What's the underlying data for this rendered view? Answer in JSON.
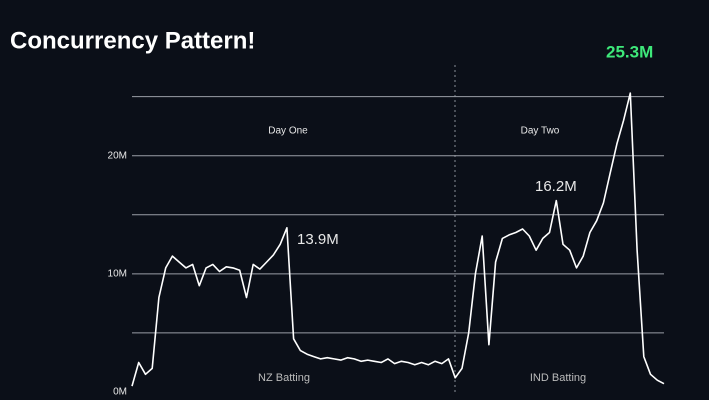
{
  "chart_data": {
    "type": "line",
    "title": "Concurrency Pattern!",
    "series": [
      {
        "color": "#ffffff",
        "values": [
          0.5,
          2.5,
          1.5,
          2,
          8,
          10.5,
          11.5,
          11,
          10.5,
          10.8,
          9,
          10.5,
          10.8,
          10.2,
          10.6,
          10.5,
          10.3,
          8,
          10.8,
          10.4,
          11,
          11.6,
          12.5,
          13.9,
          4.5,
          3.5,
          3.2,
          3,
          2.8,
          2.9,
          2.8,
          2.7,
          2.9,
          2.8,
          2.6,
          2.7,
          2.6,
          2.5,
          2.8,
          2.4,
          2.6,
          2.5,
          2.3,
          2.5,
          2.3,
          2.6,
          2.4,
          2.8,
          1.2,
          2,
          5,
          10,
          13.2,
          4,
          11,
          13,
          13.3,
          13.5,
          13.8,
          13.2,
          12,
          13,
          13.5,
          16.2,
          12.5,
          12,
          10.5,
          11.5,
          13.5,
          14.5,
          16,
          18.5,
          21,
          23,
          25.3,
          12,
          3,
          1.5,
          1,
          0.7
        ]
      }
    ],
    "ylim": [
      0,
      27
    ],
    "yticks": [
      {
        "value": 0,
        "label": "0M"
      },
      {
        "value": 10,
        "label": "10M"
      },
      {
        "value": 20,
        "label": "20M"
      }
    ],
    "minor_yticks": [
      5,
      15,
      25
    ],
    "grid": true,
    "annotations": {
      "day_one": "Day One",
      "day_two": "Day Two",
      "nz_batting": "NZ Batting",
      "ind_batting": "IND Batting",
      "peak_nz": "13.9M",
      "peak_ind_mid": "16.2M",
      "peak_max": "25.3M"
    },
    "peak_color": "#3ee87a"
  }
}
